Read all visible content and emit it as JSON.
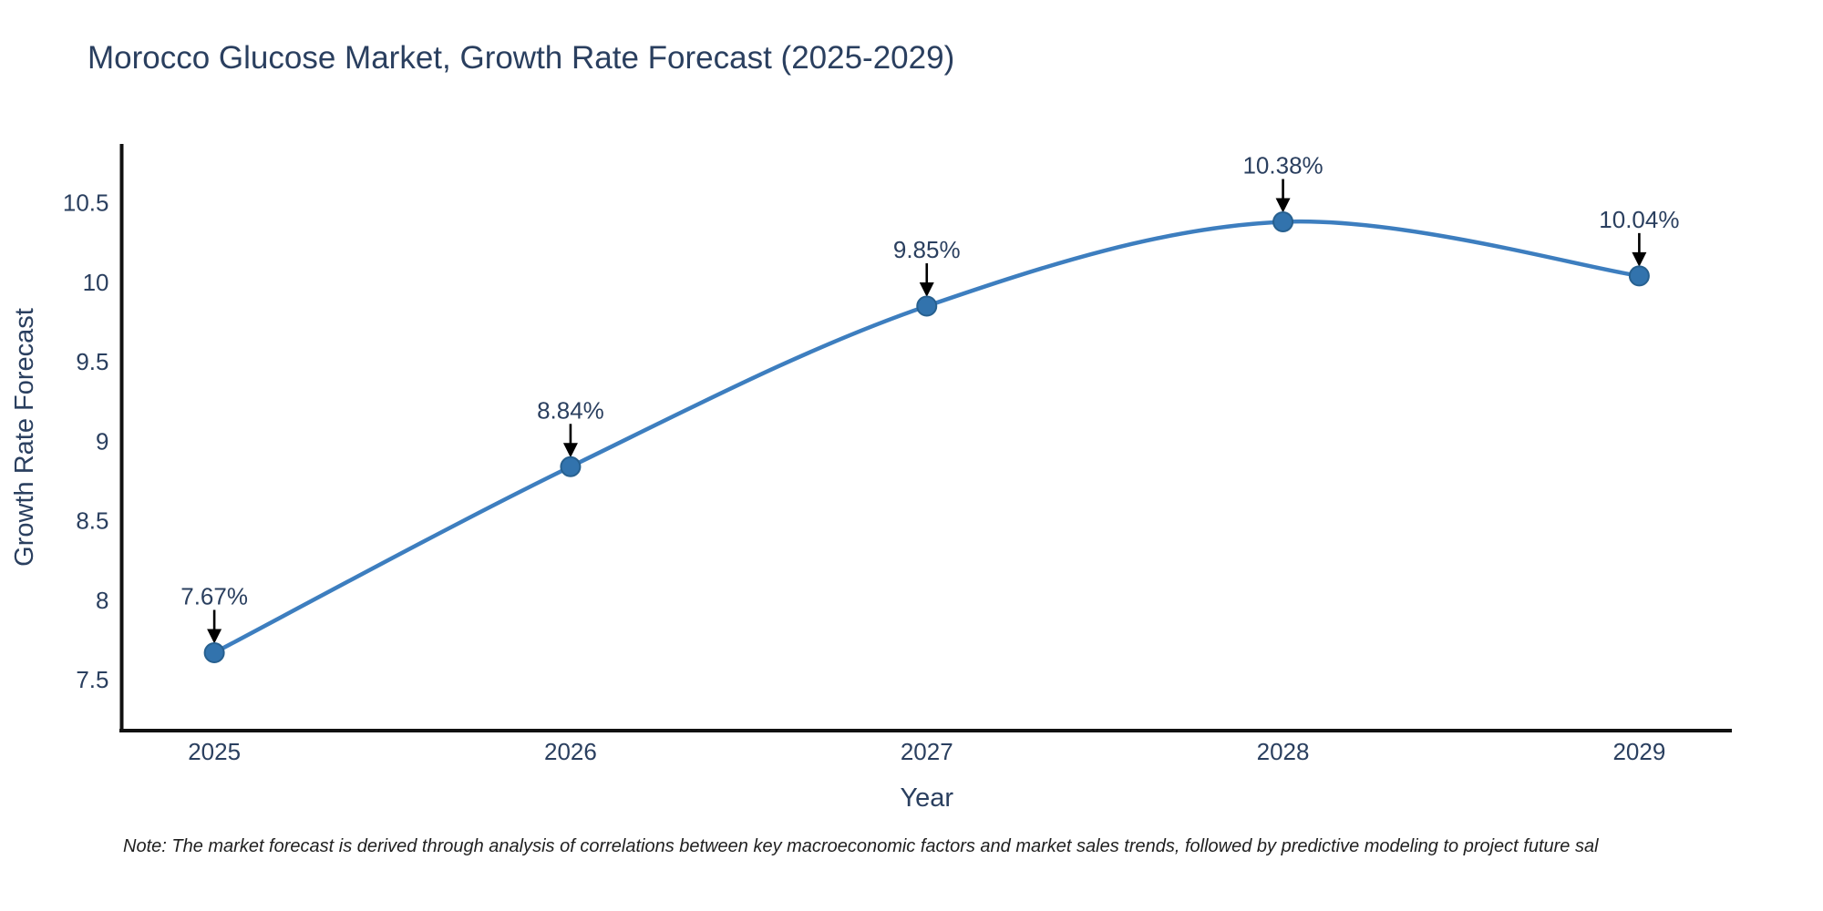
{
  "title": "Morocco Glucose Market, Growth Rate Forecast (2025-2029)",
  "note": {
    "text": "Note: The market forecast is derived through analysis of correlations between key macroeconomic factors and market sales trends, followed by predictive modeling to project future sal"
  },
  "chart_data": {
    "type": "line",
    "title": "Morocco Glucose Market, Growth Rate Forecast (2025-2029)",
    "xlabel": "Year",
    "ylabel": "Growth Rate Forecast",
    "categories": [
      2025,
      2026,
      2027,
      2028,
      2029
    ],
    "series": [
      {
        "name": "Growth Rate Forecast",
        "values": [
          7.67,
          8.84,
          9.85,
          10.38,
          10.04
        ]
      }
    ],
    "point_labels": [
      "7.67%",
      "8.84%",
      "9.85%",
      "10.38%",
      "10.04%"
    ],
    "ytick_values": [
      7.5,
      8,
      8.5,
      9,
      9.5,
      10,
      10.5
    ],
    "ytick_labels": [
      "7.5",
      "8",
      "8.5",
      "9",
      "9.5",
      "10",
      "10.5"
    ],
    "xtick_labels": [
      "2025",
      "2026",
      "2027",
      "2028",
      "2029"
    ],
    "xlim": [
      2024.74,
      2029.26
    ],
    "ylim": [
      7.18,
      10.87
    ],
    "grid": false,
    "legend": "none",
    "colors": {
      "line": "#3d7ebf",
      "marker_fill": "#3273ad",
      "marker_edge": "#27608f",
      "axis_line": "#111111",
      "text": "#2a3f5f",
      "annotation_text": "#2a3f5f",
      "arrow": "#000000"
    }
  }
}
